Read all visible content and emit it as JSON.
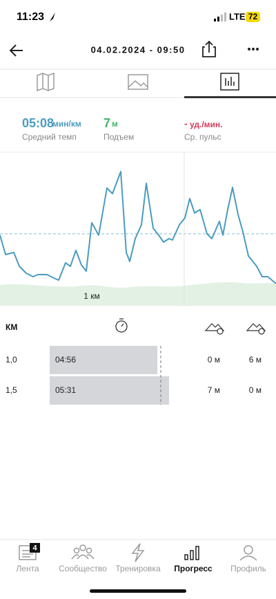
{
  "status_bar": {
    "time": "11:23",
    "network": "LTE",
    "battery": 72
  },
  "header": {
    "title": "04.02.2024 - 09:50"
  },
  "stats": [
    {
      "value": "05:08",
      "unit": "мин/км",
      "label": "Средний темп"
    },
    {
      "value": 7,
      "unit": "м",
      "label": "Подъем"
    },
    {
      "value": "-",
      "unit": "уд./мин.",
      "label": "Ср. пульс"
    }
  ],
  "chart": {
    "x_label": "1 км"
  },
  "table": {
    "header": [
      "КМ"
    ],
    "rows": [
      [
        "1,0",
        "04:56",
        "0 м",
        "6 м"
      ],
      [
        "1,5",
        "05:31",
        "7 м",
        "0 м"
      ]
    ]
  },
  "nav": {
    "items": [
      {
        "label": "Лента",
        "badge": 4
      },
      {
        "label": "Сообщество"
      },
      {
        "label": "Тренировка"
      },
      {
        "label": "Прогресс"
      },
      {
        "label": "Профиль"
      }
    ]
  }
}
